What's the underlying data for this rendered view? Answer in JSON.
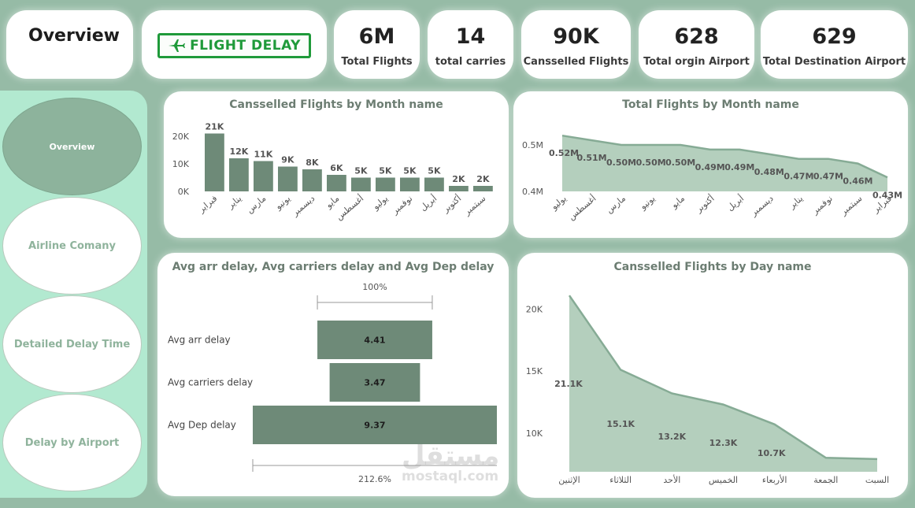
{
  "header": {
    "title": "Overview",
    "logo_text": "FLIGHT DELAY",
    "kpis": [
      {
        "value": "6M",
        "label": "Total Flights"
      },
      {
        "value": "14",
        "label": "total carries"
      },
      {
        "value": "90K",
        "label": "Cansselled Flights"
      },
      {
        "value": "628",
        "label": "Total orgin Airport"
      },
      {
        "value": "629",
        "label": "Total Destination Airport"
      }
    ]
  },
  "sidebar": {
    "items": [
      {
        "label": "Overview",
        "active": true
      },
      {
        "label": "Airline Comany",
        "active": false
      },
      {
        "label": "Detailed Delay Time",
        "active": false
      },
      {
        "label": "Delay by Airport",
        "active": false
      }
    ]
  },
  "colors": {
    "bar": "#6e8a78",
    "area": "#b4cfbd",
    "line": "#86ab95",
    "background": "#96bba6"
  },
  "watermark": {
    "line1": "مستقل",
    "line2": "mostaql.com"
  },
  "chart_data": [
    {
      "id": "cancelled_by_month",
      "type": "bar",
      "title": "Cansselled Flights by Month name",
      "categories": [
        "فبراير",
        "يناير",
        "مارس",
        "يونيو",
        "ديسمبر",
        "مايو",
        "أغسطس",
        "يوليو",
        "نوفمبر",
        "أبريل",
        "أكتوبر",
        "سبتمبر"
      ],
      "values": [
        21000,
        12000,
        11000,
        9000,
        8000,
        6000,
        5000,
        5000,
        5000,
        5000,
        2000,
        2000
      ],
      "data_labels": [
        "21K",
        "12K",
        "11K",
        "9K",
        "8K",
        "6K",
        "5K",
        "5K",
        "5K",
        "5K",
        "2K",
        "2K"
      ],
      "y_ticks": [
        "20K",
        "10K",
        "0K"
      ],
      "ylim": [
        0,
        22000
      ]
    },
    {
      "id": "total_by_month",
      "type": "area",
      "title": "Total Flights by Month name",
      "categories": [
        "يوليو",
        "أغسطس",
        "مارس",
        "يونيو",
        "مايو",
        "أكتوبر",
        "أبريل",
        "ديسمبر",
        "يناير",
        "نوفمبر",
        "سبتمبر",
        "فبراير"
      ],
      "values": [
        0.52,
        0.51,
        0.5,
        0.5,
        0.5,
        0.49,
        0.49,
        0.48,
        0.47,
        0.47,
        0.46,
        0.43
      ],
      "data_labels": [
        "0.52M",
        "0.51M",
        "0.50M",
        "0.50M",
        "0.50M",
        "0.49M",
        "0.49M",
        "0.48M",
        "0.47M",
        "0.47M",
        "0.46M",
        "0.43M"
      ],
      "y_ticks": [
        "0.5M",
        "0.4M"
      ],
      "ylim": [
        0.4,
        0.52
      ]
    },
    {
      "id": "avg_delays",
      "type": "bar",
      "orientation": "horizontal-funnel",
      "title": "Avg arr delay, Avg carriers delay and Avg Dep delay",
      "categories": [
        "Avg arr delay",
        "Avg carriers delay",
        "Avg Dep delay"
      ],
      "values": [
        4.41,
        3.47,
        9.37
      ],
      "data_labels": [
        "4.41",
        "3.47",
        "9.37"
      ],
      "top_percent": "100%",
      "bottom_percent": "212.6%"
    },
    {
      "id": "cancelled_by_day",
      "type": "area",
      "title": "Cansselled Flights by Day name",
      "categories": [
        "الإثنين",
        "الثلاثاء",
        "الأحد",
        "الخميس",
        "الأربعاء",
        "الجمعة",
        "السبت"
      ],
      "values": [
        21100,
        15100,
        13200,
        12300,
        10700,
        8000,
        7900
      ],
      "data_labels": [
        "21.1K",
        "15.1K",
        "13.2K",
        "12.3K",
        "10.7K",
        "",
        ""
      ],
      "y_ticks": [
        "20K",
        "15K",
        "10K"
      ],
      "ylim": [
        7000,
        22000
      ]
    }
  ]
}
